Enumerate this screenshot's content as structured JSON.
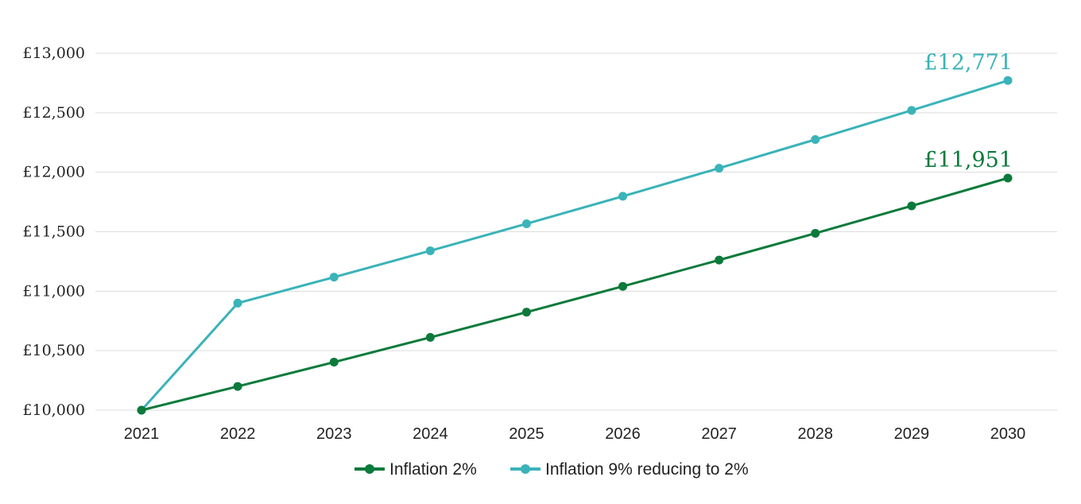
{
  "chart_data": {
    "type": "line",
    "title": "",
    "xlabel": "",
    "ylabel": "",
    "x": [
      "2021",
      "2022",
      "2023",
      "2024",
      "2025",
      "2026",
      "2027",
      "2028",
      "2029",
      "2030"
    ],
    "ylim": [
      10000,
      13000
    ],
    "yticks": [
      {
        "value": 13000,
        "label": "£13,000"
      },
      {
        "value": 12500,
        "label": "£12,500"
      },
      {
        "value": 12000,
        "label": "£12,000"
      },
      {
        "value": 11500,
        "label": "£11,500"
      },
      {
        "value": 11000,
        "label": "£11,000"
      },
      {
        "value": 10500,
        "label": "£10,500"
      },
      {
        "value": 10000,
        "label": "£10,000"
      }
    ],
    "grid": true,
    "legend_position": "bottom",
    "series": [
      {
        "name": "Inflation 2%",
        "color": "#0b7a3b",
        "values": [
          10000,
          10200,
          10404,
          10612,
          10824,
          11041,
          11262,
          11487,
          11717,
          11951
        ],
        "end_label": "£11,951"
      },
      {
        "name": "Inflation 9% reducing to 2%",
        "color": "#3ab3b9",
        "values": [
          10000,
          10900,
          11118,
          11340,
          11567,
          11798,
          12034,
          12275,
          12520,
          12771
        ],
        "end_label": "£12,771"
      }
    ]
  }
}
